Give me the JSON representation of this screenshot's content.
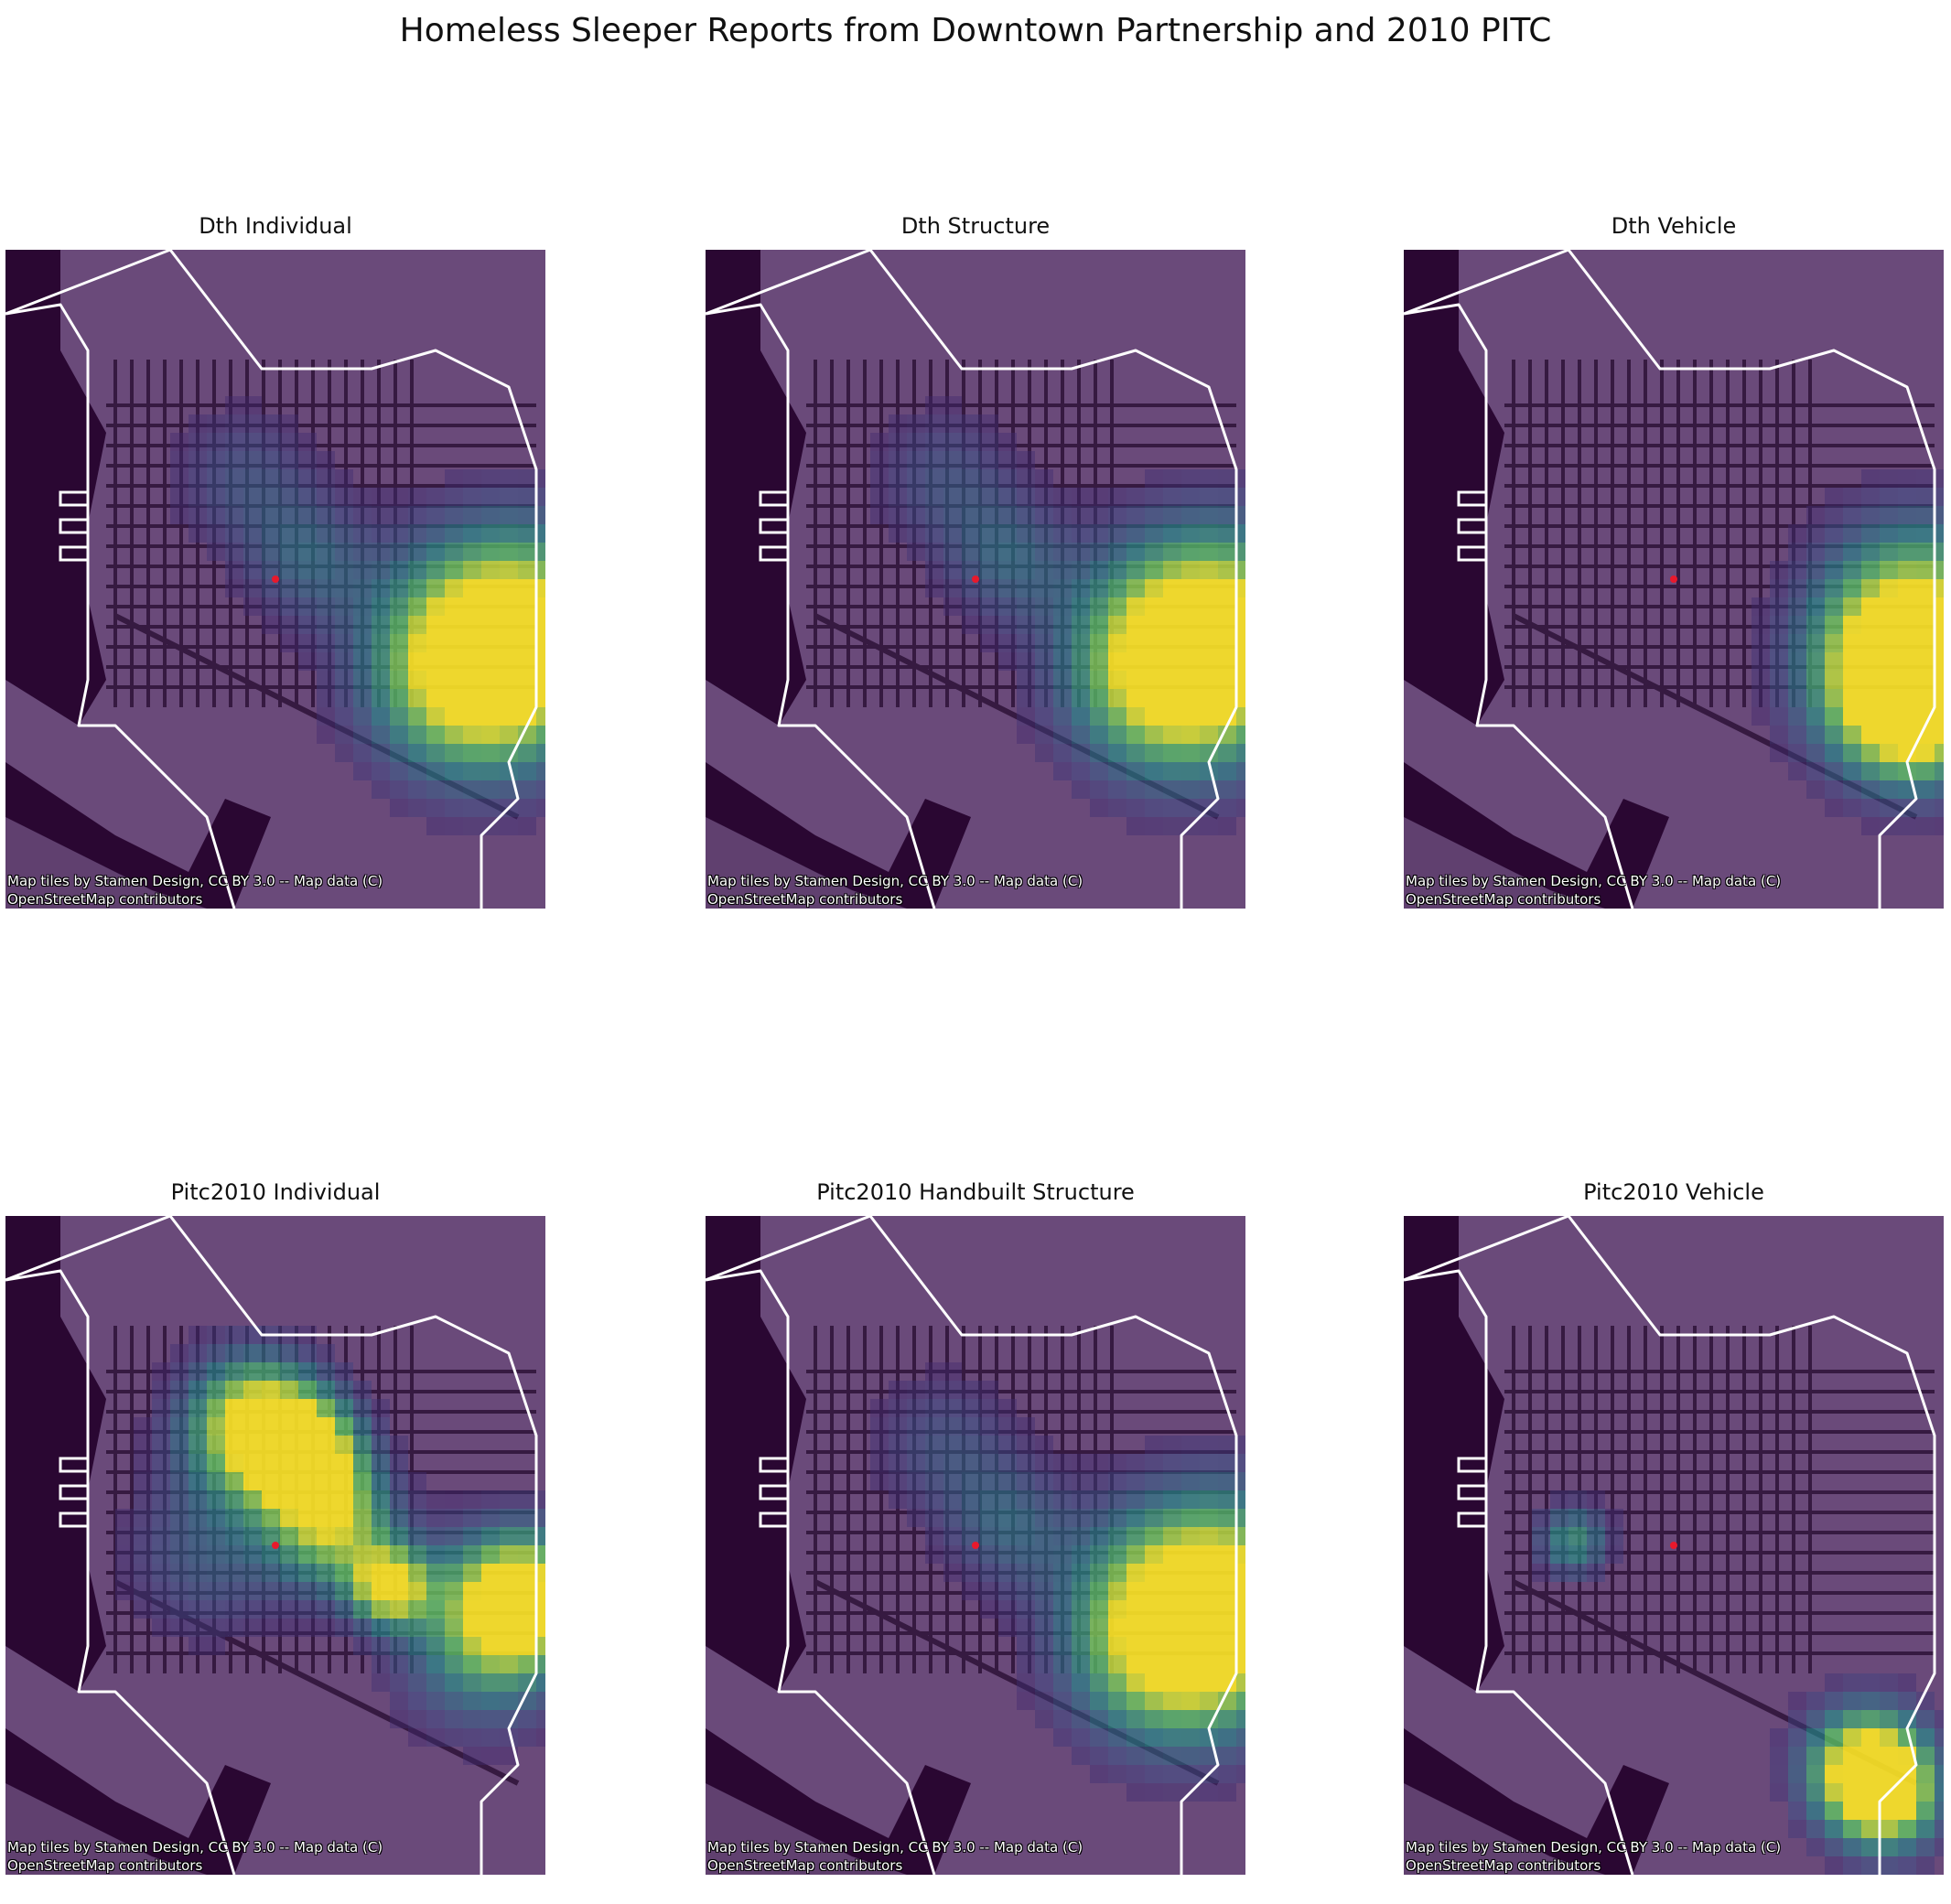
{
  "title": "Homeless Sleeper Reports from Downtown Partnership and 2010 PITC",
  "colors": {
    "water": "#2a0732",
    "land": "#6a4a7a",
    "roads": "#2e1238",
    "boundary": "#ffffff",
    "center_marker": "#e8192c",
    "colormap": "viridis"
  },
  "attribution": {
    "line1": "Map tiles by Stamen Design, CC BY 3.0 -- Map data (C)",
    "line2": "OpenStreetMap contributors"
  },
  "panels": [
    {
      "title": "Dth Individual",
      "hotspots": "east"
    },
    {
      "title": "Dth Structure",
      "hotspots": "east"
    },
    {
      "title": "Dth Vehicle",
      "hotspots": "east-edge"
    },
    {
      "title": "Pitc2010 Individual",
      "hotspots": "diagonal"
    },
    {
      "title": "Pitc2010 Handbuilt Structure",
      "hotspots": "east"
    },
    {
      "title": "Pitc2010 Vehicle",
      "hotspots": "southeast"
    }
  ]
}
